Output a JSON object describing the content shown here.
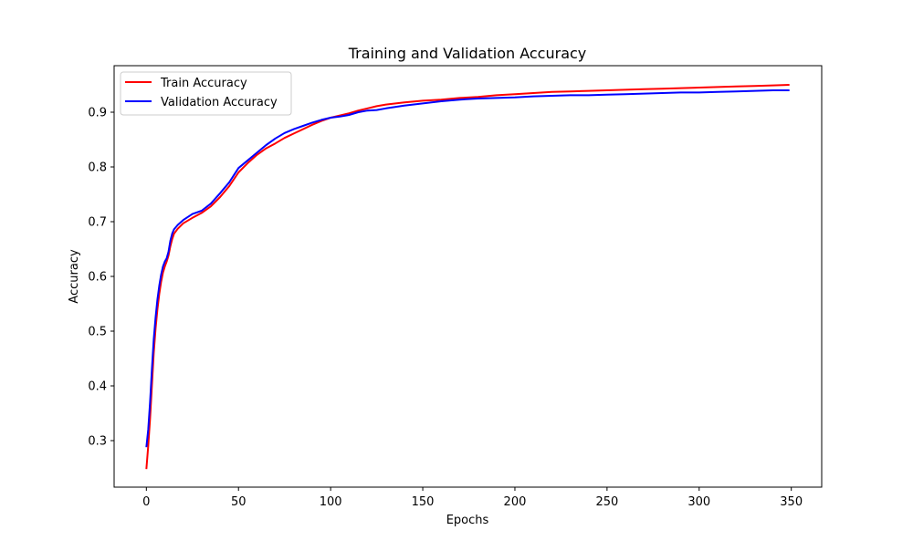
{
  "chart_data": {
    "type": "line",
    "title": "Training and Validation Accuracy",
    "xlabel": "Epochs",
    "ylabel": "Accuracy",
    "xlim": [
      -17.5,
      366.5
    ],
    "ylim": [
      0.215,
      0.985
    ],
    "xticks": [
      0,
      50,
      100,
      150,
      200,
      250,
      300,
      350
    ],
    "yticks": [
      0.3,
      0.4,
      0.5,
      0.6,
      0.7,
      0.8,
      0.9
    ],
    "ytick_labels": [
      "0.3",
      "0.4",
      "0.5",
      "0.6",
      "0.7",
      "0.8",
      "0.9"
    ],
    "grid": false,
    "legend": "upper left",
    "series": [
      {
        "name": "Train Accuracy",
        "color": "#ff0000",
        "points": [
          [
            0,
            0.248
          ],
          [
            1,
            0.29
          ],
          [
            2,
            0.34
          ],
          [
            3,
            0.4
          ],
          [
            4,
            0.46
          ],
          [
            5,
            0.505
          ],
          [
            6,
            0.54
          ],
          [
            7,
            0.568
          ],
          [
            8,
            0.59
          ],
          [
            9,
            0.607
          ],
          [
            10,
            0.618
          ],
          [
            11,
            0.627
          ],
          [
            12,
            0.638
          ],
          [
            13,
            0.655
          ],
          [
            14,
            0.668
          ],
          [
            15,
            0.678
          ],
          [
            17,
            0.687
          ],
          [
            20,
            0.697
          ],
          [
            25,
            0.707
          ],
          [
            30,
            0.716
          ],
          [
            35,
            0.728
          ],
          [
            40,
            0.745
          ],
          [
            45,
            0.765
          ],
          [
            50,
            0.79
          ],
          [
            55,
            0.807
          ],
          [
            60,
            0.822
          ],
          [
            65,
            0.834
          ],
          [
            70,
            0.843
          ],
          [
            75,
            0.853
          ],
          [
            80,
            0.861
          ],
          [
            85,
            0.869
          ],
          [
            90,
            0.877
          ],
          [
            95,
            0.884
          ],
          [
            100,
            0.89
          ],
          [
            105,
            0.894
          ],
          [
            110,
            0.898
          ],
          [
            115,
            0.903
          ],
          [
            120,
            0.907
          ],
          [
            125,
            0.911
          ],
          [
            130,
            0.914
          ],
          [
            140,
            0.918
          ],
          [
            150,
            0.921
          ],
          [
            160,
            0.923
          ],
          [
            170,
            0.926
          ],
          [
            180,
            0.928
          ],
          [
            190,
            0.931
          ],
          [
            200,
            0.933
          ],
          [
            210,
            0.935
          ],
          [
            220,
            0.937
          ],
          [
            230,
            0.938
          ],
          [
            240,
            0.939
          ],
          [
            250,
            0.94
          ],
          [
            260,
            0.941
          ],
          [
            270,
            0.942
          ],
          [
            280,
            0.943
          ],
          [
            290,
            0.944
          ],
          [
            300,
            0.945
          ],
          [
            310,
            0.946
          ],
          [
            320,
            0.947
          ],
          [
            330,
            0.948
          ],
          [
            340,
            0.949
          ],
          [
            349,
            0.95
          ]
        ]
      },
      {
        "name": "Validation Accuracy",
        "color": "#0000ff",
        "points": [
          [
            0,
            0.288
          ],
          [
            1,
            0.32
          ],
          [
            2,
            0.37
          ],
          [
            3,
            0.43
          ],
          [
            4,
            0.485
          ],
          [
            5,
            0.525
          ],
          [
            6,
            0.558
          ],
          [
            7,
            0.583
          ],
          [
            8,
            0.603
          ],
          [
            9,
            0.618
          ],
          [
            10,
            0.627
          ],
          [
            11,
            0.633
          ],
          [
            12,
            0.645
          ],
          [
            13,
            0.665
          ],
          [
            14,
            0.678
          ],
          [
            15,
            0.686
          ],
          [
            17,
            0.694
          ],
          [
            20,
            0.703
          ],
          [
            25,
            0.714
          ],
          [
            30,
            0.72
          ],
          [
            35,
            0.733
          ],
          [
            40,
            0.752
          ],
          [
            45,
            0.772
          ],
          [
            50,
            0.798
          ],
          [
            55,
            0.812
          ],
          [
            60,
            0.826
          ],
          [
            65,
            0.84
          ],
          [
            70,
            0.852
          ],
          [
            75,
            0.862
          ],
          [
            80,
            0.869
          ],
          [
            85,
            0.875
          ],
          [
            90,
            0.881
          ],
          [
            95,
            0.886
          ],
          [
            100,
            0.89
          ],
          [
            105,
            0.892
          ],
          [
            110,
            0.895
          ],
          [
            115,
            0.9
          ],
          [
            120,
            0.903
          ],
          [
            125,
            0.904
          ],
          [
            130,
            0.907
          ],
          [
            140,
            0.912
          ],
          [
            150,
            0.916
          ],
          [
            160,
            0.92
          ],
          [
            170,
            0.923
          ],
          [
            180,
            0.925
          ],
          [
            190,
            0.926
          ],
          [
            200,
            0.927
          ],
          [
            210,
            0.929
          ],
          [
            220,
            0.93
          ],
          [
            230,
            0.931
          ],
          [
            240,
            0.931
          ],
          [
            250,
            0.932
          ],
          [
            260,
            0.933
          ],
          [
            270,
            0.934
          ],
          [
            280,
            0.935
          ],
          [
            290,
            0.936
          ],
          [
            300,
            0.936
          ],
          [
            310,
            0.937
          ],
          [
            320,
            0.938
          ],
          [
            330,
            0.939
          ],
          [
            340,
            0.94
          ],
          [
            349,
            0.94
          ]
        ]
      }
    ]
  }
}
